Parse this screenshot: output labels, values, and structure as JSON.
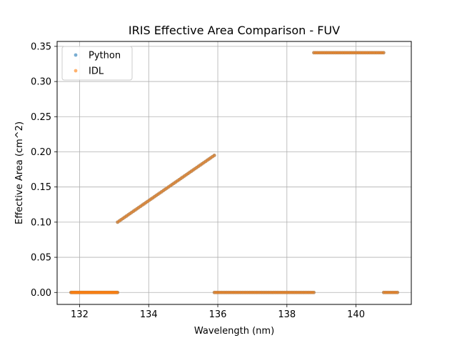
{
  "chart_data": {
    "type": "scatter",
    "title": "IRIS Effective Area Comparison - FUV",
    "xlabel": "Wavelength (nm)",
    "ylabel": "Effective Area (cm^2)",
    "xlim": [
      131.35,
      141.6
    ],
    "ylim": [
      -0.017,
      0.357
    ],
    "xticks": [
      132,
      134,
      136,
      138,
      140
    ],
    "yticks": [
      0.0,
      0.05,
      0.1,
      0.15,
      0.2,
      0.25,
      0.3,
      0.35
    ],
    "xtick_labels": [
      "132",
      "134",
      "136",
      "138",
      "140"
    ],
    "ytick_labels": [
      "0.00",
      "0.05",
      "0.10",
      "0.15",
      "0.20",
      "0.25",
      "0.30",
      "0.35"
    ],
    "grid": true,
    "legend_position": "top-left",
    "series": [
      {
        "name": "Python",
        "color": "#1f77b4",
        "segments": [
          {
            "x_start": 131.75,
            "x_end": 133.1,
            "y_start": 0.0,
            "y_end": 0.0,
            "n": 55
          },
          {
            "x_start": 133.1,
            "x_end": 135.9,
            "y_start": 0.1,
            "y_end": 0.195,
            "n": 56
          },
          {
            "x_start": 135.9,
            "x_end": 138.78,
            "y_start": 0.0,
            "y_end": 0.0,
            "n": 58
          },
          {
            "x_start": 138.78,
            "x_end": 140.8,
            "y_start": 0.341,
            "y_end": 0.341,
            "n": 40
          },
          {
            "x_start": 140.8,
            "x_end": 141.2,
            "y_start": 0.0,
            "y_end": 0.0,
            "n": 9
          }
        ]
      },
      {
        "name": "IDL",
        "color": "#ff7f0e",
        "segments": [
          {
            "x_start": 131.75,
            "x_end": 133.1,
            "y_start": 0.0,
            "y_end": 0.0,
            "n": 55
          },
          {
            "x_start": 133.1,
            "x_end": 135.9,
            "y_start": 0.1,
            "y_end": 0.195,
            "n": 56
          },
          {
            "x_start": 135.9,
            "x_end": 138.78,
            "y_start": 0.0,
            "y_end": 0.0,
            "n": 58
          },
          {
            "x_start": 138.78,
            "x_end": 140.8,
            "y_start": 0.341,
            "y_end": 0.341,
            "n": 40
          },
          {
            "x_start": 140.8,
            "x_end": 141.2,
            "y_start": 0.0,
            "y_end": 0.0,
            "n": 9
          }
        ]
      }
    ]
  }
}
